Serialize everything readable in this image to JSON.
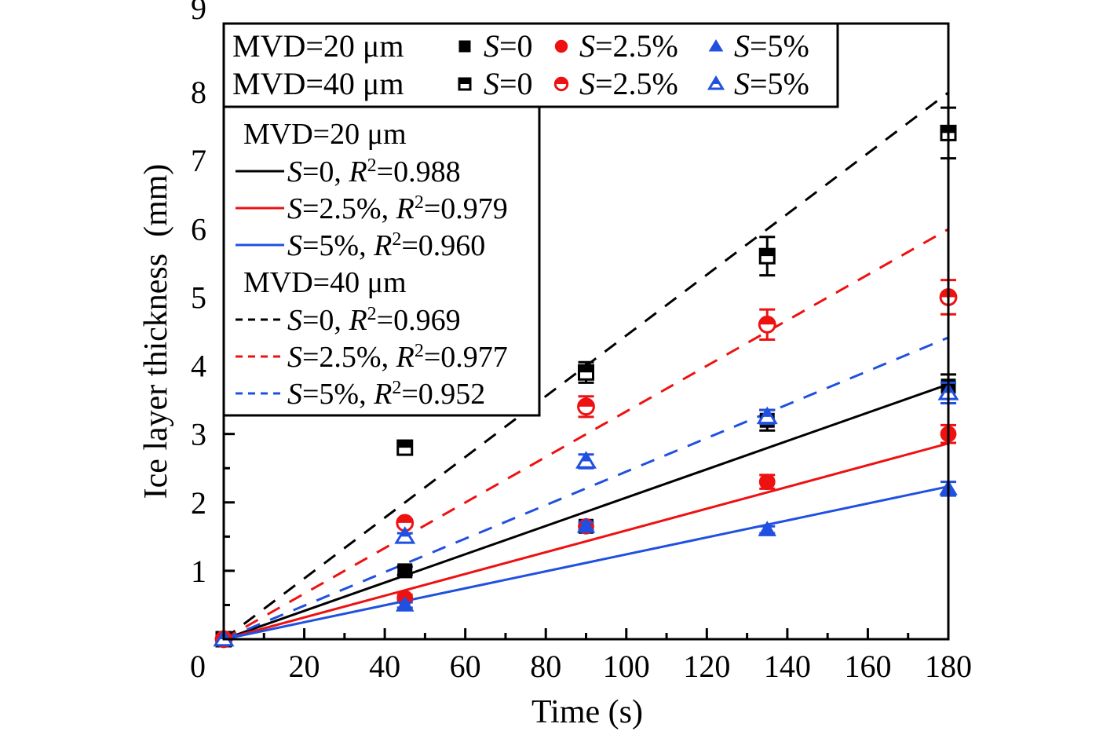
{
  "chart_data": {
    "type": "scatter",
    "title": "",
    "xlabel": "Time (s)",
    "ylabel": "Ice layer thickness  (mm)",
    "xlim": [
      0,
      180
    ],
    "ylim": [
      0,
      9
    ],
    "x_ticks": [
      0,
      20,
      40,
      60,
      80,
      100,
      120,
      140,
      160,
      180
    ],
    "y_ticks": [
      1,
      2,
      3,
      4,
      5,
      6,
      7,
      8,
      9
    ],
    "x_tick_labels": [
      "0",
      "20",
      "40",
      "60",
      "80",
      "100",
      "120",
      "140",
      "160",
      "180"
    ],
    "y_tick_labels": [
      "1",
      "2",
      "3",
      "4",
      "5",
      "6",
      "7",
      "8",
      "9"
    ],
    "grid": false,
    "colors": {
      "black": "#000000",
      "red": "#ee1111",
      "blue": "#2050e0"
    },
    "series": [
      {
        "name": "MVD=20 μm, S=0",
        "mvd": "20",
        "s": "0",
        "marker": "square",
        "fill": "full",
        "color": "black",
        "x": [
          0,
          45,
          90,
          135,
          180
        ],
        "y": [
          0,
          1.0,
          1.65,
          3.2,
          3.7
        ],
        "err": [
          0,
          0.06,
          0.06,
          0.15,
          0.17
        ]
      },
      {
        "name": "MVD=20 μm, S=2.5%",
        "mvd": "20",
        "s": "2.5%",
        "marker": "circle",
        "fill": "full",
        "color": "red",
        "x": [
          0,
          45,
          90,
          135,
          180
        ],
        "y": [
          0,
          0.6,
          1.65,
          2.3,
          3.0
        ],
        "err": [
          0,
          0.05,
          0.06,
          0.1,
          0.13
        ]
      },
      {
        "name": "MVD=20 μm, S=5%",
        "mvd": "20",
        "s": "5%",
        "marker": "triangle",
        "fill": "full",
        "color": "blue",
        "x": [
          0,
          45,
          90,
          135,
          180
        ],
        "y": [
          0,
          0.5,
          1.65,
          1.6,
          2.2
        ],
        "err": [
          0,
          0.04,
          0.06,
          0.05,
          0.1
        ]
      },
      {
        "name": "MVD=40 μm, S=0",
        "mvd": "40",
        "s": "0",
        "marker": "square",
        "fill": "half",
        "color": "black",
        "x": [
          0,
          45,
          90,
          135,
          180
        ],
        "y": [
          0,
          2.8,
          3.9,
          5.6,
          7.4
        ],
        "err": [
          0,
          0.1,
          0.15,
          0.28,
          0.37
        ]
      },
      {
        "name": "MVD=40 μm, S=2.5%",
        "mvd": "40",
        "s": "2.5%",
        "marker": "circle",
        "fill": "half",
        "color": "red",
        "x": [
          0,
          45,
          90,
          135,
          180
        ],
        "y": [
          0,
          1.7,
          3.4,
          4.6,
          5.0
        ],
        "err": [
          0,
          0.05,
          0.15,
          0.22,
          0.25
        ]
      },
      {
        "name": "MVD=40 μm, S=5%",
        "mvd": "40",
        "s": "5%",
        "marker": "triangle",
        "fill": "half",
        "color": "blue",
        "x": [
          0,
          45,
          90,
          135,
          180
        ],
        "y": [
          0,
          1.5,
          2.6,
          3.25,
          3.6
        ],
        "err": [
          0,
          0.05,
          0.1,
          0.1,
          0.15
        ]
      }
    ],
    "fits": [
      {
        "name": "MVD=20 μm, S=0",
        "color": "black",
        "style": "solid",
        "slope": 0.0207,
        "r2": "0.988"
      },
      {
        "name": "MVD=20 μm, S=2.5%",
        "color": "red",
        "style": "solid",
        "slope": 0.0159,
        "r2": "0.979"
      },
      {
        "name": "MVD=20 μm, S=5%",
        "color": "blue",
        "style": "solid",
        "slope": 0.0124,
        "r2": "0.960"
      },
      {
        "name": "MVD=40 μm, S=0",
        "color": "black",
        "style": "dashed",
        "slope": 0.0444,
        "r2": "0.969"
      },
      {
        "name": "MVD=40 μm, S=2.5%",
        "color": "red",
        "style": "dashed",
        "slope": 0.0333,
        "r2": "0.977"
      },
      {
        "name": "MVD=40 μm, S=5%",
        "color": "blue",
        "style": "dashed",
        "slope": 0.0245,
        "r2": "0.952"
      }
    ],
    "legend_markers": {
      "placement": "top",
      "rows": [
        {
          "group": "MVD=20 μm",
          "fill": "full",
          "items": [
            {
              "marker": "square",
              "color": "black",
              "s_label": "S",
              "value": "=0"
            },
            {
              "marker": "circle",
              "color": "red",
              "s_label": "S",
              "value": "=2.5%"
            },
            {
              "marker": "triangle",
              "color": "blue",
              "s_label": "S",
              "value": "=5%"
            }
          ]
        },
        {
          "group": "MVD=40 μm",
          "fill": "half",
          "items": [
            {
              "marker": "square",
              "color": "black",
              "s_label": "S",
              "value": "=0"
            },
            {
              "marker": "circle",
              "color": "red",
              "s_label": "S",
              "value": "=2.5%"
            },
            {
              "marker": "triangle",
              "color": "blue",
              "s_label": "S",
              "value": "=5%"
            }
          ]
        }
      ]
    },
    "legend_fits": {
      "placement": "top-left",
      "groups": [
        {
          "title": "MVD=20 μm",
          "style": "solid",
          "items": [
            {
              "color": "black",
              "s_value": "=0, ",
              "r2": "=0.988"
            },
            {
              "color": "red",
              "s_value": "=2.5%, ",
              "r2": "=0.979"
            },
            {
              "color": "blue",
              "s_value": "=5%, ",
              "r2": "=0.960"
            }
          ]
        },
        {
          "title": "MVD=40 μm",
          "style": "dashed",
          "items": [
            {
              "color": "black",
              "s_value": "=0, ",
              "r2": "=0.969"
            },
            {
              "color": "red",
              "s_value": "=2.5%, ",
              "r2": "=0.977"
            },
            {
              "color": "blue",
              "s_value": "=5%, ",
              "r2": "=0.952"
            }
          ]
        }
      ]
    }
  }
}
